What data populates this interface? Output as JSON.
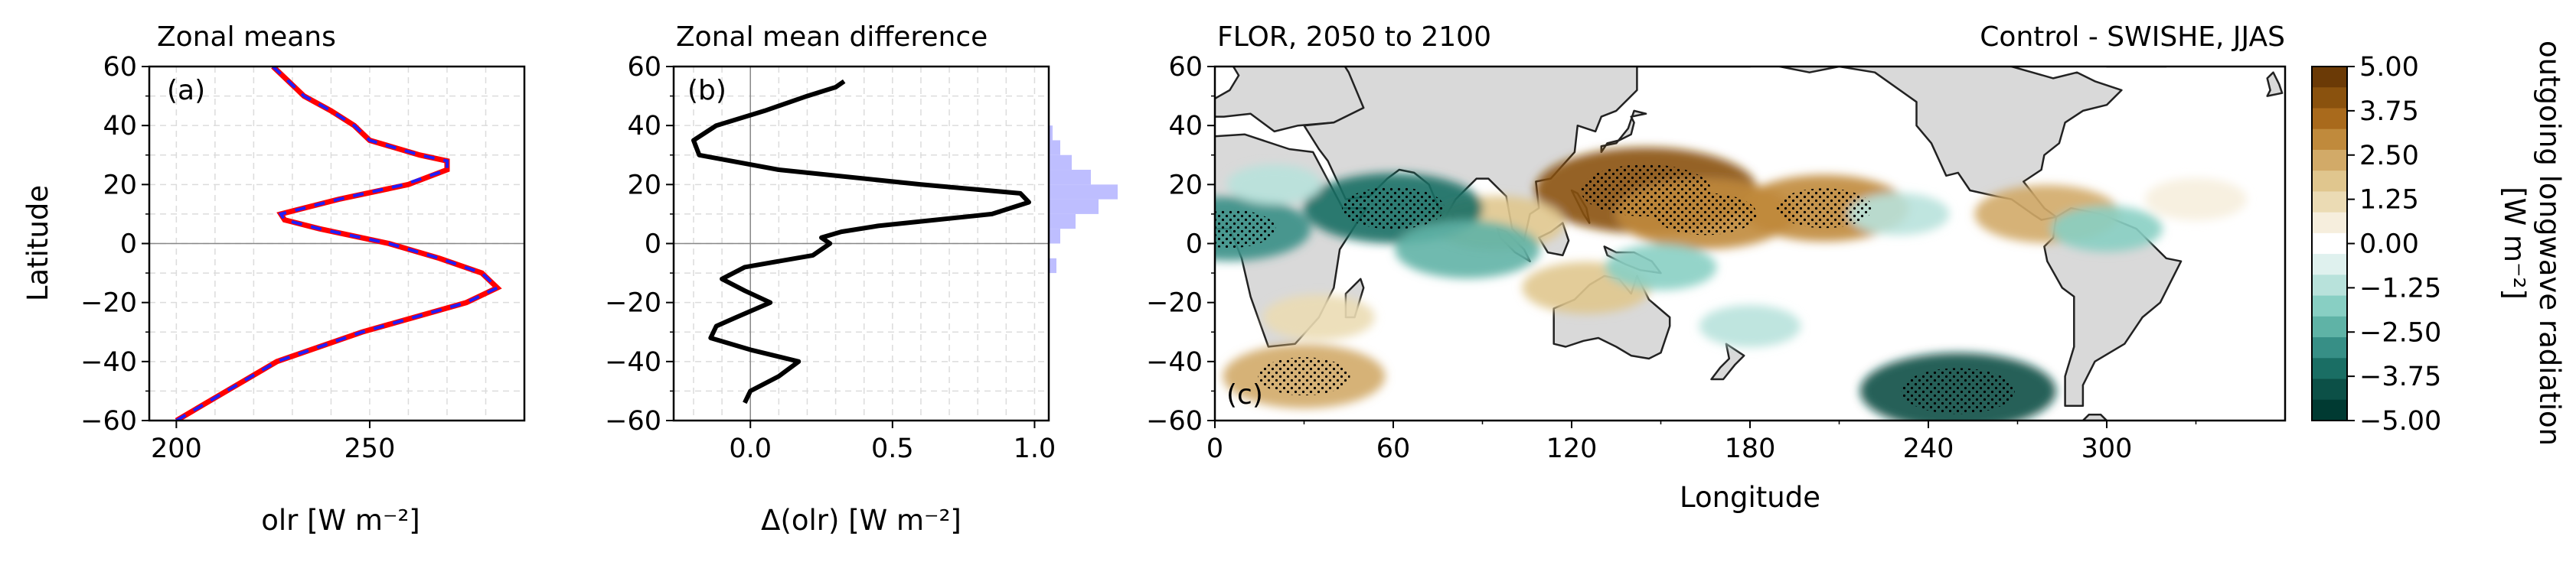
{
  "figure": {
    "panel_a_title": "Zonal means",
    "panel_b_title": "Zonal mean difference",
    "panel_c_title_left": "FLOR, 2050 to 2100",
    "panel_c_title_right": "Control - SWISHE, JJAS",
    "panel_a_label": "(a)",
    "panel_b_label": "(b)",
    "panel_c_label": "(c)",
    "colorbar_label_line1": "outgoing longwave radiation",
    "colorbar_label_line2": "[W m⁻²]"
  },
  "colors": {
    "control_line": "#ff0000",
    "swishe_line": "#1f1fff",
    "diff_line": "#000000",
    "land": "#d9d9d9",
    "histogram": "#b3b3ff"
  },
  "chart_data": [
    {
      "type": "line",
      "panel": "a",
      "title": "Zonal means",
      "xlabel": "olr [W m⁻²]",
      "ylabel": "Latitude",
      "xlim": [
        193,
        290
      ],
      "ylim": [
        -60,
        60
      ],
      "xticks": [
        200,
        250
      ],
      "yticks": [
        -60,
        -40,
        -20,
        0,
        20,
        40,
        60
      ],
      "grid": true,
      "series": [
        {
          "style": "solid-red",
          "lat": [
            -60,
            -50,
            -40,
            -30,
            -20,
            -15,
            -10,
            -5,
            0,
            5,
            8,
            10,
            15,
            20,
            25,
            28,
            30,
            35,
            40,
            45,
            50,
            55,
            60
          ],
          "values": [
            200,
            213,
            226,
            248,
            275,
            283,
            279,
            268,
            255,
            237,
            228,
            227,
            242,
            260,
            270,
            270,
            263,
            250,
            246,
            240,
            233,
            229,
            225
          ]
        },
        {
          "style": "dashed-blue",
          "lat": [
            -60,
            -50,
            -40,
            -30,
            -20,
            -15,
            -10,
            -5,
            0,
            5,
            8,
            10,
            15,
            20,
            25,
            28,
            30,
            35,
            40,
            45,
            50,
            55,
            60
          ],
          "values": [
            200,
            213,
            226,
            248,
            275,
            283,
            279,
            268,
            255,
            237,
            228,
            227,
            242,
            259,
            270,
            270,
            263,
            250,
            246,
            240,
            233,
            229,
            225
          ]
        }
      ]
    },
    {
      "type": "line",
      "panel": "b",
      "title": "Zonal mean difference",
      "xlabel": "Δ(olr) [W m⁻²]",
      "xlim": [
        -0.27,
        1.05
      ],
      "ylim": [
        -60,
        60
      ],
      "xticks": [
        0.0,
        0.5,
        1.0
      ],
      "xtick_labels": [
        "0.0",
        "0.5",
        "1.0"
      ],
      "yticks": [
        -60,
        -40,
        -20,
        0,
        20,
        40,
        60
      ],
      "grid": true,
      "series": [
        {
          "lat": [
            -54,
            -50,
            -45,
            -40,
            -36,
            -32,
            -28,
            -25,
            -20,
            -16,
            -12,
            -8,
            -4,
            0,
            2,
            4,
            6,
            10,
            14,
            17,
            20,
            25,
            30,
            35,
            40,
            45,
            50,
            53,
            55
          ],
          "values": [
            -0.02,
            0.0,
            0.1,
            0.17,
            0.0,
            -0.14,
            -0.12,
            -0.05,
            0.07,
            -0.02,
            -0.1,
            -0.02,
            0.22,
            0.28,
            0.25,
            0.32,
            0.45,
            0.85,
            0.98,
            0.95,
            0.6,
            0.1,
            -0.18,
            -0.2,
            -0.12,
            0.05,
            0.2,
            0.3,
            0.33
          ]
        }
      ],
      "histogram": {
        "lat_bins": [
          -10,
          -5,
          0,
          5,
          10,
          15,
          20,
          25,
          30,
          35
        ],
        "counts": [
          0.4,
          0,
          0.6,
          1.4,
          2.6,
          3.6,
          2.2,
          1.2,
          0.6,
          0.2
        ]
      }
    },
    {
      "type": "heatmap",
      "panel": "c",
      "title": "FLOR, 2050 to 2100",
      "subtitle": "Control - SWISHE, JJAS",
      "xlabel": "Longitude",
      "xlim": [
        0,
        360
      ],
      "ylim": [
        -60,
        60
      ],
      "xticks": [
        0,
        60,
        120,
        180,
        240,
        300
      ],
      "yticks": [
        -60,
        -40,
        -20,
        0,
        20,
        40,
        60
      ],
      "colorbar": {
        "label": "outgoing longwave radiation [W m⁻²]",
        "ticks": [
          5.0,
          3.75,
          2.5,
          1.25,
          0.0,
          -1.25,
          -2.5,
          -3.75,
          -5.0
        ],
        "tick_labels": [
          "5.00",
          "3.75",
          "2.50",
          "1.25",
          "0.00",
          "−1.25",
          "−2.50",
          "−3.75",
          "−5.00"
        ],
        "levels": [
          5.0,
          4.375,
          3.75,
          3.125,
          2.5,
          1.875,
          1.25,
          0.625,
          0.0,
          -0.625,
          -1.25,
          -1.875,
          -2.5,
          -3.125,
          -3.75,
          -4.375,
          -5.0
        ],
        "colors": [
          "#6b3a06",
          "#8a520e",
          "#a96a1c",
          "#c08a3c",
          "#d2aa68",
          "#e0c68e",
          "#ebdbb4",
          "#f6eedd",
          "#ffffff",
          "#dff1ee",
          "#b8e2db",
          "#88cfc3",
          "#5fb3a6",
          "#378f86",
          "#1a6e64",
          "#0c5047",
          "#003a32"
        ]
      },
      "anomalies": [
        {
          "lon": 145,
          "lat": 18,
          "value": 4.8
        },
        {
          "lon": 165,
          "lat": 10,
          "value": 3.5
        },
        {
          "lon": 205,
          "lat": 12,
          "value": 3.2
        },
        {
          "lon": 280,
          "lat": 10,
          "value": 2.5
        },
        {
          "lon": 95,
          "lat": 7,
          "value": 2.2
        },
        {
          "lon": 125,
          "lat": -15,
          "value": 2.0
        },
        {
          "lon": 30,
          "lat": -45,
          "value": 3.0
        },
        {
          "lon": 35,
          "lat": -25,
          "value": 1.5
        },
        {
          "lon": 330,
          "lat": 15,
          "value": 1.2
        },
        {
          "lon": 60,
          "lat": 12,
          "value": -3.5
        },
        {
          "lon": 5,
          "lat": 5,
          "value": -3.0
        },
        {
          "lon": 85,
          "lat": -2,
          "value": -2.5
        },
        {
          "lon": 150,
          "lat": -8,
          "value": -1.5
        },
        {
          "lon": 250,
          "lat": -50,
          "value": -4.0
        },
        {
          "lon": 230,
          "lat": 10,
          "value": -1.2
        },
        {
          "lon": 300,
          "lat": 5,
          "value": -1.5
        },
        {
          "lon": 180,
          "lat": -28,
          "value": -1.2
        },
        {
          "lon": 20,
          "lat": 20,
          "value": -1.0
        }
      ]
    }
  ]
}
